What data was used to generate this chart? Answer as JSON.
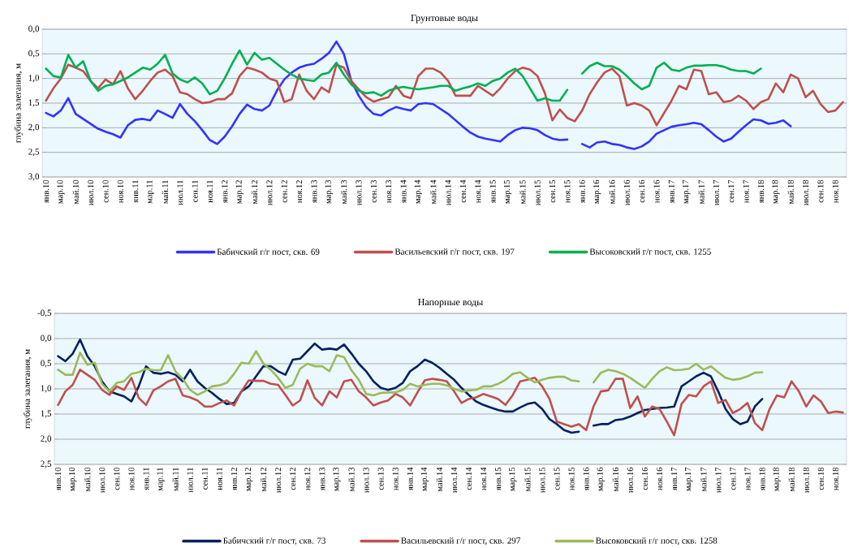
{
  "chart_data": [
    {
      "type": "line",
      "title": "Грунтовые воды",
      "ylabel": "глубина залегания, м",
      "categories": [
        "янв.10",
        null,
        "мар.10",
        null,
        "май.10",
        null,
        "июл.10",
        null,
        "сен.10",
        null,
        "ноя.10",
        null,
        "янв.11",
        null,
        "мар.11",
        null,
        "май.11",
        null,
        "июл.11",
        null,
        "сен.11",
        null,
        "ноя.11",
        null,
        "янв.12",
        null,
        "мар.12",
        null,
        "май.12",
        null,
        "июл.12",
        null,
        "сен.12",
        null,
        "ноя.12",
        null,
        "янв.13",
        null,
        "мар.13",
        null,
        "май.13",
        null,
        "июл.13",
        null,
        "сен.13",
        null,
        "ноя.13",
        null,
        "янв.14",
        null,
        "мар.14",
        null,
        "май.14",
        null,
        "июл.14",
        null,
        "сен.14",
        null,
        "ноя.14",
        null,
        "янв.15",
        null,
        "мар.15",
        null,
        "май.15",
        null,
        "июл.15",
        null,
        "сен.15",
        null,
        "ноя.15",
        null,
        "янв.16",
        null,
        "мар.16",
        null,
        "май.16",
        null,
        "июл.16",
        null,
        "сен.16",
        null,
        "ноя.16",
        null,
        "янв.17",
        null,
        "мар.17",
        null,
        "май.17",
        null,
        "июл.17",
        null,
        "сен.17",
        null,
        "ноя.17",
        null,
        "янв.18",
        null,
        "мар.18",
        null,
        "май.18",
        null,
        "июл.18",
        null,
        "сен.18",
        null,
        "ноя.18",
        null
      ],
      "ylim": [
        3.0,
        0.0
      ],
      "yticks": [
        {
          "value": 0.0,
          "label": "0,0"
        },
        {
          "value": 0.5,
          "label": "0,5"
        },
        {
          "value": 1.0,
          "label": "1,0"
        },
        {
          "value": 1.5,
          "label": "1,5"
        },
        {
          "value": 2.0,
          "label": "2,0"
        },
        {
          "value": 2.5,
          "label": "2,5"
        },
        {
          "value": 3.0,
          "label": "3,0"
        }
      ],
      "grid": "y",
      "legend": "bottom",
      "series": [
        {
          "name": "Бабичский г/г пост, скв. 69",
          "color": "#3333ff",
          "values": [
            1.7,
            1.77,
            1.65,
            1.4,
            1.72,
            1.82,
            1.92,
            2.02,
            2.08,
            2.13,
            2.2,
            1.95,
            1.84,
            1.82,
            1.85,
            1.65,
            1.72,
            1.8,
            1.52,
            1.72,
            1.87,
            2.05,
            2.25,
            2.33,
            2.18,
            1.97,
            1.72,
            1.53,
            1.62,
            1.65,
            1.55,
            1.25,
            1.02,
            0.88,
            0.78,
            0.73,
            0.7,
            0.6,
            0.48,
            0.25,
            0.5,
            1.05,
            1.35,
            1.58,
            1.72,
            1.75,
            1.65,
            1.58,
            1.62,
            1.65,
            1.52,
            1.5,
            1.52,
            1.62,
            1.72,
            1.85,
            1.98,
            2.1,
            2.18,
            2.22,
            2.25,
            2.28,
            2.15,
            2.05,
            2.0,
            2.01,
            2.05,
            2.15,
            2.22,
            2.25,
            2.24,
            null,
            2.33,
            2.4,
            2.3,
            2.28,
            2.33,
            2.35,
            2.4,
            2.43,
            2.38,
            2.28,
            2.12,
            2.05,
            1.98,
            1.95,
            1.93,
            1.9,
            1.93,
            2.05,
            2.18,
            2.28,
            2.22,
            2.08,
            1.95,
            1.83,
            1.85,
            1.92,
            1.9,
            1.85,
            1.97,
            null,
            null,
            null,
            null,
            null,
            null,
            null
          ]
        },
        {
          "name": "Васильевский г/г пост, скв. 197",
          "color": "#c0504d",
          "values": [
            1.45,
            1.2,
            1.0,
            0.72,
            0.78,
            0.85,
            1.05,
            1.2,
            1.02,
            1.12,
            0.85,
            1.2,
            1.42,
            1.25,
            1.05,
            0.88,
            0.82,
            0.95,
            1.28,
            1.32,
            1.42,
            1.5,
            1.48,
            1.42,
            1.42,
            1.3,
            0.95,
            0.78,
            0.82,
            0.88,
            1.0,
            1.05,
            1.48,
            1.42,
            0.92,
            1.25,
            1.42,
            1.18,
            1.28,
            0.72,
            0.78,
            1.05,
            1.22,
            1.38,
            1.47,
            1.42,
            1.38,
            1.15,
            1.35,
            1.4,
            0.95,
            0.8,
            0.8,
            0.88,
            1.05,
            1.35,
            1.35,
            1.35,
            1.15,
            1.25,
            1.35,
            1.2,
            1.0,
            0.85,
            0.78,
            0.82,
            0.95,
            1.3,
            1.85,
            1.63,
            1.8,
            1.87,
            1.65,
            1.32,
            1.08,
            0.88,
            0.8,
            0.95,
            1.55,
            1.5,
            1.55,
            1.65,
            1.95,
            1.7,
            1.45,
            1.15,
            1.22,
            0.82,
            0.85,
            1.32,
            1.28,
            1.48,
            1.45,
            1.35,
            1.45,
            1.62,
            1.48,
            1.42,
            1.1,
            1.28,
            0.92,
            1.0,
            1.38,
            1.25,
            1.52,
            1.68,
            1.65,
            1.48
          ]
        },
        {
          "name": "Высоковский г/г пост, скв. 1255",
          "color": "#00b050",
          "values": [
            0.8,
            0.95,
            0.98,
            0.52,
            0.78,
            0.65,
            1.05,
            1.25,
            1.15,
            1.12,
            1.05,
            0.98,
            0.88,
            0.78,
            0.82,
            0.7,
            0.52,
            0.9,
            1.02,
            1.08,
            0.98,
            1.1,
            1.32,
            1.25,
            1.0,
            0.7,
            0.43,
            0.72,
            0.48,
            0.62,
            0.58,
            0.7,
            0.82,
            0.92,
            1.0,
            1.03,
            1.05,
            0.92,
            0.88,
            0.68,
            0.92,
            1.12,
            1.25,
            1.3,
            1.28,
            1.35,
            1.25,
            1.2,
            1.17,
            1.2,
            1.22,
            1.2,
            1.18,
            1.15,
            1.15,
            1.25,
            1.2,
            1.16,
            1.1,
            1.15,
            1.05,
            1.0,
            0.88,
            0.8,
            0.95,
            1.2,
            1.45,
            1.4,
            1.45,
            1.45,
            1.23,
            null,
            0.9,
            0.75,
            0.68,
            0.75,
            0.75,
            0.82,
            0.95,
            1.1,
            1.22,
            1.15,
            0.78,
            0.68,
            0.82,
            0.85,
            0.78,
            0.74,
            0.74,
            0.73,
            0.73,
            0.76,
            0.82,
            0.85,
            0.85,
            0.9,
            0.8,
            null,
            null,
            null,
            null,
            null,
            null,
            null,
            null,
            null,
            null,
            null
          ]
        }
      ]
    },
    {
      "type": "line",
      "title": "Напорные воды",
      "ylabel": "глубина залегания, м",
      "categories": [
        "янв.10",
        null,
        "мар.10",
        null,
        "май.10",
        null,
        "июл.10",
        null,
        "сен.10",
        null,
        "ноя.10",
        null,
        "янв.11",
        null,
        "мар.11",
        null,
        "май.11",
        null,
        "июл.11",
        null,
        "сен.11",
        null,
        "ноя.11",
        null,
        "янв.12",
        null,
        "мар.12",
        null,
        "май.12",
        null,
        "июл.12",
        null,
        "сен.12",
        null,
        "ноя.12",
        null,
        "янв.13",
        null,
        "мар.13",
        null,
        "май.13",
        null,
        "июл.13",
        null,
        "сен.13",
        null,
        "ноя.13",
        null,
        "янв.14",
        null,
        "мар.14",
        null,
        "май.14",
        null,
        "июл.14",
        null,
        "сен.14",
        null,
        "ноя.14",
        null,
        "янв.15",
        null,
        "мар.15",
        null,
        "май.15",
        null,
        "июл.15",
        null,
        "сен.15",
        null,
        "ноя.15",
        null,
        "янв.16",
        null,
        "мар.16",
        null,
        "май.16",
        null,
        "июл.16",
        null,
        "сен.16",
        null,
        "ноя.16",
        null,
        "янв.17",
        null,
        "мар.17",
        null,
        "май.17",
        null,
        "июл.17",
        null,
        "сен.17",
        null,
        "ноя.17",
        null,
        "янв.18",
        null,
        "мар.18",
        null,
        "май.18",
        null,
        "июл.18",
        null,
        "сен.18",
        null,
        "ноя.18",
        null
      ],
      "ylim": [
        2.5,
        -0.5
      ],
      "yticks": [
        {
          "value": -0.5,
          "label": "-0,5"
        },
        {
          "value": 0.0,
          "label": "0,0"
        },
        {
          "value": 0.5,
          "label": "0,5"
        },
        {
          "value": 1.0,
          "label": "1,0"
        },
        {
          "value": 1.5,
          "label": "1,5"
        },
        {
          "value": 2.0,
          "label": "2,0"
        },
        {
          "value": 2.5,
          "label": "2,5"
        }
      ],
      "grid": "y",
      "legend": "bottom",
      "series": [
        {
          "name": "Бабичский г/г пост, скв. 73",
          "color": "#002060",
          "values": [
            0.35,
            0.45,
            0.3,
            0.02,
            0.35,
            0.55,
            0.85,
            1.05,
            1.1,
            1.15,
            1.25,
            0.95,
            0.55,
            0.68,
            0.7,
            0.67,
            0.72,
            0.85,
            0.62,
            0.85,
            0.98,
            1.08,
            1.2,
            1.3,
            1.28,
            1.05,
            0.95,
            0.75,
            0.55,
            0.55,
            0.65,
            0.72,
            0.42,
            0.4,
            0.25,
            0.1,
            0.22,
            0.2,
            0.22,
            0.12,
            0.3,
            0.5,
            0.65,
            0.85,
            0.98,
            1.02,
            0.98,
            0.88,
            0.65,
            0.55,
            0.42,
            0.48,
            0.58,
            0.7,
            0.82,
            0.98,
            1.12,
            1.25,
            1.32,
            1.37,
            1.42,
            1.45,
            1.45,
            1.37,
            1.3,
            1.27,
            1.4,
            1.6,
            1.7,
            1.82,
            1.87,
            1.85,
            null,
            1.73,
            1.7,
            1.7,
            1.62,
            1.6,
            1.55,
            1.48,
            1.42,
            1.4,
            1.38,
            1.37,
            1.35,
            0.95,
            0.85,
            0.75,
            0.68,
            0.75,
            1.05,
            1.4,
            1.6,
            1.7,
            1.65,
            1.35,
            1.2,
            null,
            null,
            null,
            null,
            null,
            null,
            null,
            null,
            null,
            null,
            null
          ]
        },
        {
          "name": "Васильевский г/г пост, скв. 297",
          "color": "#c0504d",
          "values": [
            1.32,
            1.05,
            0.92,
            0.62,
            0.72,
            0.82,
            1.02,
            1.12,
            0.95,
            1.02,
            0.78,
            1.18,
            1.32,
            1.03,
            0.95,
            0.85,
            0.8,
            1.13,
            1.17,
            1.23,
            1.35,
            1.35,
            1.28,
            1.23,
            1.33,
            1.05,
            0.83,
            0.84,
            0.84,
            0.9,
            0.92,
            1.12,
            1.33,
            1.23,
            0.83,
            1.18,
            1.33,
            1.05,
            1.17,
            0.85,
            0.82,
            1.05,
            1.17,
            1.33,
            1.27,
            1.23,
            1.1,
            1.17,
            1.33,
            1.07,
            0.83,
            0.8,
            0.82,
            0.85,
            1.05,
            1.28,
            1.2,
            1.17,
            1.1,
            1.15,
            1.2,
            1.32,
            1.12,
            0.85,
            0.82,
            0.78,
            0.95,
            1.2,
            1.65,
            1.7,
            1.75,
            1.7,
            1.82,
            1.35,
            1.05,
            1.03,
            0.8,
            0.8,
            1.38,
            1.15,
            1.55,
            1.35,
            1.4,
            1.65,
            1.92,
            1.3,
            1.12,
            1.15,
            0.95,
            0.85,
            1.28,
            1.22,
            1.48,
            1.4,
            1.28,
            1.68,
            1.82,
            1.4,
            1.13,
            1.17,
            0.85,
            1.05,
            1.35,
            1.13,
            1.25,
            1.48,
            1.45,
            1.47
          ]
        },
        {
          "name": "Высоковский г/г пост, скв. 1258",
          "color": "#9bbb59",
          "values": [
            0.62,
            0.72,
            0.72,
            0.28,
            0.52,
            0.48,
            0.9,
            1.05,
            0.88,
            0.85,
            0.7,
            0.67,
            0.6,
            0.63,
            0.63,
            0.33,
            0.65,
            0.8,
            1.02,
            1.12,
            1.05,
            0.95,
            0.93,
            0.88,
            0.7,
            0.48,
            0.5,
            0.25,
            0.5,
            0.62,
            0.78,
            0.98,
            0.92,
            0.6,
            0.5,
            0.55,
            0.55,
            0.65,
            0.33,
            0.37,
            0.63,
            0.82,
            1.1,
            1.13,
            1.08,
            1.07,
            1.07,
            1.02,
            0.9,
            0.95,
            0.92,
            0.9,
            0.9,
            0.93,
            1.0,
            1.05,
            1.03,
            1.02,
            0.95,
            0.95,
            0.9,
            0.82,
            0.7,
            0.67,
            0.78,
            0.87,
            0.82,
            0.78,
            0.76,
            0.76,
            0.83,
            0.85,
            null,
            0.87,
            0.68,
            0.62,
            0.65,
            0.7,
            0.78,
            0.88,
            0.98,
            0.8,
            0.65,
            0.57,
            0.63,
            0.62,
            0.6,
            0.5,
            0.62,
            0.55,
            0.67,
            0.78,
            0.82,
            0.8,
            0.75,
            0.68,
            0.67,
            null,
            null,
            null,
            null,
            null,
            null,
            null,
            null,
            null,
            null,
            null
          ]
        }
      ]
    }
  ]
}
